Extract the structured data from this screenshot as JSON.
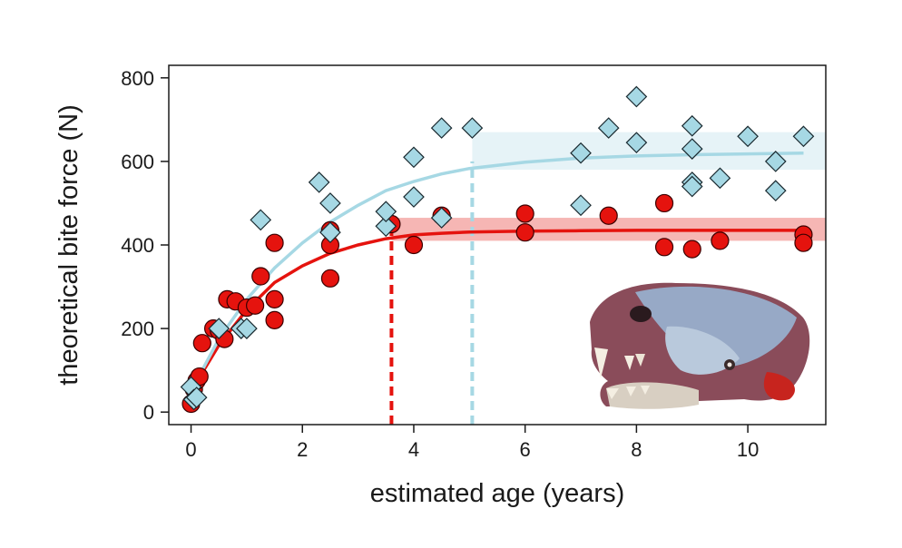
{
  "chart_data": {
    "type": "scatter",
    "xlabel": "estimated age (years)",
    "ylabel": "theoretical bite force (N)",
    "xlim": [
      -0.4,
      11.4
    ],
    "ylim": [
      -30,
      830
    ],
    "xticks": [
      0,
      2,
      4,
      6,
      8,
      10
    ],
    "yticks": [
      0,
      200,
      400,
      600,
      800
    ],
    "grid": false,
    "series": [
      {
        "name": "red",
        "marker": "circle",
        "color": "#e5130e",
        "points": [
          [
            0.0,
            20
          ],
          [
            0.05,
            55
          ],
          [
            0.1,
            75
          ],
          [
            0.15,
            85
          ],
          [
            0.2,
            165
          ],
          [
            0.4,
            200
          ],
          [
            0.5,
            195
          ],
          [
            0.6,
            175
          ],
          [
            0.65,
            270
          ],
          [
            0.8,
            265
          ],
          [
            1.0,
            250
          ],
          [
            1.15,
            255
          ],
          [
            1.25,
            325
          ],
          [
            1.5,
            405
          ],
          [
            1.5,
            270
          ],
          [
            1.5,
            220
          ],
          [
            2.5,
            400
          ],
          [
            2.5,
            435
          ],
          [
            2.5,
            320
          ],
          [
            3.6,
            450
          ],
          [
            4.0,
            400
          ],
          [
            4.5,
            470
          ],
          [
            6.0,
            475
          ],
          [
            6.0,
            430
          ],
          [
            7.5,
            470
          ],
          [
            8.5,
            500
          ],
          [
            8.5,
            395
          ],
          [
            9.0,
            390
          ],
          [
            9.5,
            410
          ],
          [
            11.0,
            425
          ],
          [
            11.0,
            405
          ]
        ],
        "curve": [
          [
            0,
            50
          ],
          [
            0.5,
            160
          ],
          [
            1.0,
            245
          ],
          [
            1.5,
            310
          ],
          [
            2.0,
            350
          ],
          [
            2.5,
            380
          ],
          [
            3.0,
            400
          ],
          [
            3.5,
            415
          ],
          [
            4.0,
            424
          ],
          [
            4.5,
            428
          ],
          [
            5.0,
            431
          ],
          [
            6,
            433
          ],
          [
            7,
            434
          ],
          [
            8,
            435
          ],
          [
            9,
            435
          ],
          [
            10,
            435
          ],
          [
            11,
            435
          ]
        ],
        "asymptote_age": 3.6,
        "band": [
          410,
          465
        ]
      },
      {
        "name": "blue",
        "marker": "diamond",
        "color": "#a6d8e4",
        "points": [
          [
            0.0,
            60
          ],
          [
            0.05,
            30
          ],
          [
            0.1,
            35
          ],
          [
            0.5,
            200
          ],
          [
            0.9,
            200
          ],
          [
            1.0,
            200
          ],
          [
            1.25,
            460
          ],
          [
            2.3,
            550
          ],
          [
            2.5,
            500
          ],
          [
            2.5,
            430
          ],
          [
            3.5,
            445
          ],
          [
            3.5,
            480
          ],
          [
            4.0,
            515
          ],
          [
            4.0,
            610
          ],
          [
            4.5,
            680
          ],
          [
            4.5,
            465
          ],
          [
            5.05,
            680
          ],
          [
            7.0,
            495
          ],
          [
            7.0,
            620
          ],
          [
            7.5,
            680
          ],
          [
            8.0,
            755
          ],
          [
            8.0,
            645
          ],
          [
            9.0,
            685
          ],
          [
            9.0,
            630
          ],
          [
            9.0,
            550
          ],
          [
            9.0,
            540
          ],
          [
            9.5,
            560
          ],
          [
            10.0,
            660
          ],
          [
            10.5,
            600
          ],
          [
            10.5,
            530
          ],
          [
            11.0,
            660
          ]
        ],
        "curve": [
          [
            0,
            50
          ],
          [
            0.5,
            175
          ],
          [
            1.0,
            270
          ],
          [
            1.5,
            345
          ],
          [
            2.0,
            405
          ],
          [
            2.5,
            455
          ],
          [
            3.0,
            495
          ],
          [
            3.5,
            530
          ],
          [
            4.0,
            552
          ],
          [
            4.5,
            570
          ],
          [
            5.0,
            583
          ],
          [
            6,
            598
          ],
          [
            7,
            608
          ],
          [
            8,
            613
          ],
          [
            9,
            616
          ],
          [
            10,
            618
          ],
          [
            11,
            620
          ]
        ],
        "asymptote_age": 5.05,
        "band": [
          580,
          670
        ]
      }
    ]
  }
}
